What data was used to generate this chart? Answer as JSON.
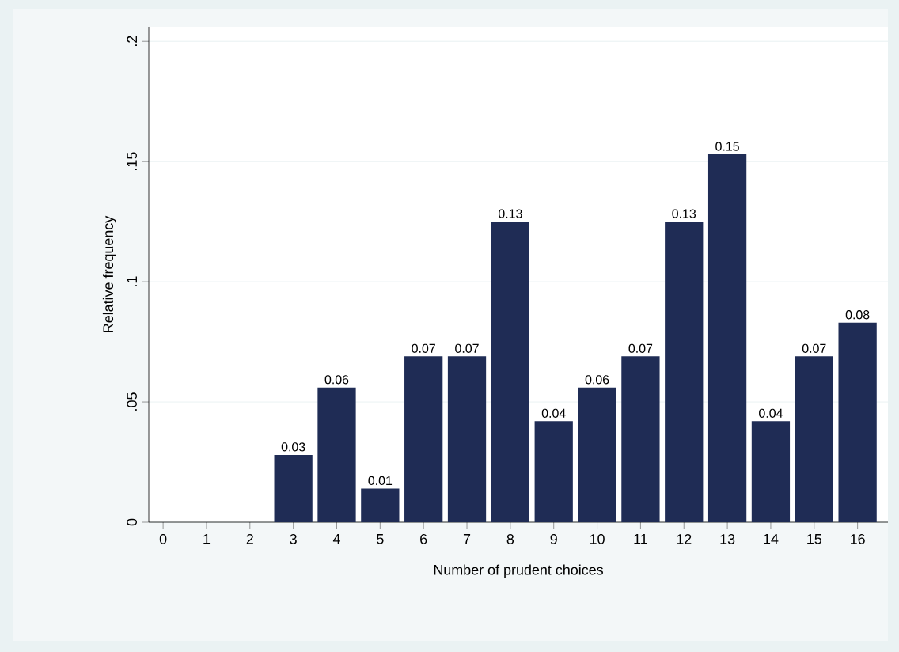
{
  "chart_data": {
    "type": "bar",
    "xlabel": "Number of prudent choices",
    "ylabel": "Relative frequency",
    "categories": [
      "0",
      "1",
      "2",
      "3",
      "4",
      "5",
      "6",
      "7",
      "8",
      "9",
      "10",
      "11",
      "12",
      "13",
      "14",
      "15",
      "16"
    ],
    "values": [
      0,
      0,
      0,
      0.028,
      0.056,
      0.014,
      0.069,
      0.069,
      0.125,
      0.042,
      0.056,
      0.069,
      0.125,
      0.153,
      0.042,
      0.069,
      0.083
    ],
    "value_labels": [
      null,
      null,
      null,
      "0.03",
      "0.06",
      "0.01",
      "0.07",
      "0.07",
      "0.13",
      "0.04",
      "0.06",
      "0.07",
      "0.13",
      "0.15",
      "0.04",
      "0.07",
      "0.08"
    ],
    "color": "#1f2c55",
    "ylim": [
      0,
      0.206
    ],
    "yticks": [
      0,
      {
        "value": 0.05,
        "label": ".05"
      },
      {
        "value": 0.1,
        "label": ".1"
      },
      {
        "value": 0.15,
        "label": ".15"
      },
      {
        "value": 0.2,
        "label": ".2"
      }
    ],
    "grid": "y"
  }
}
